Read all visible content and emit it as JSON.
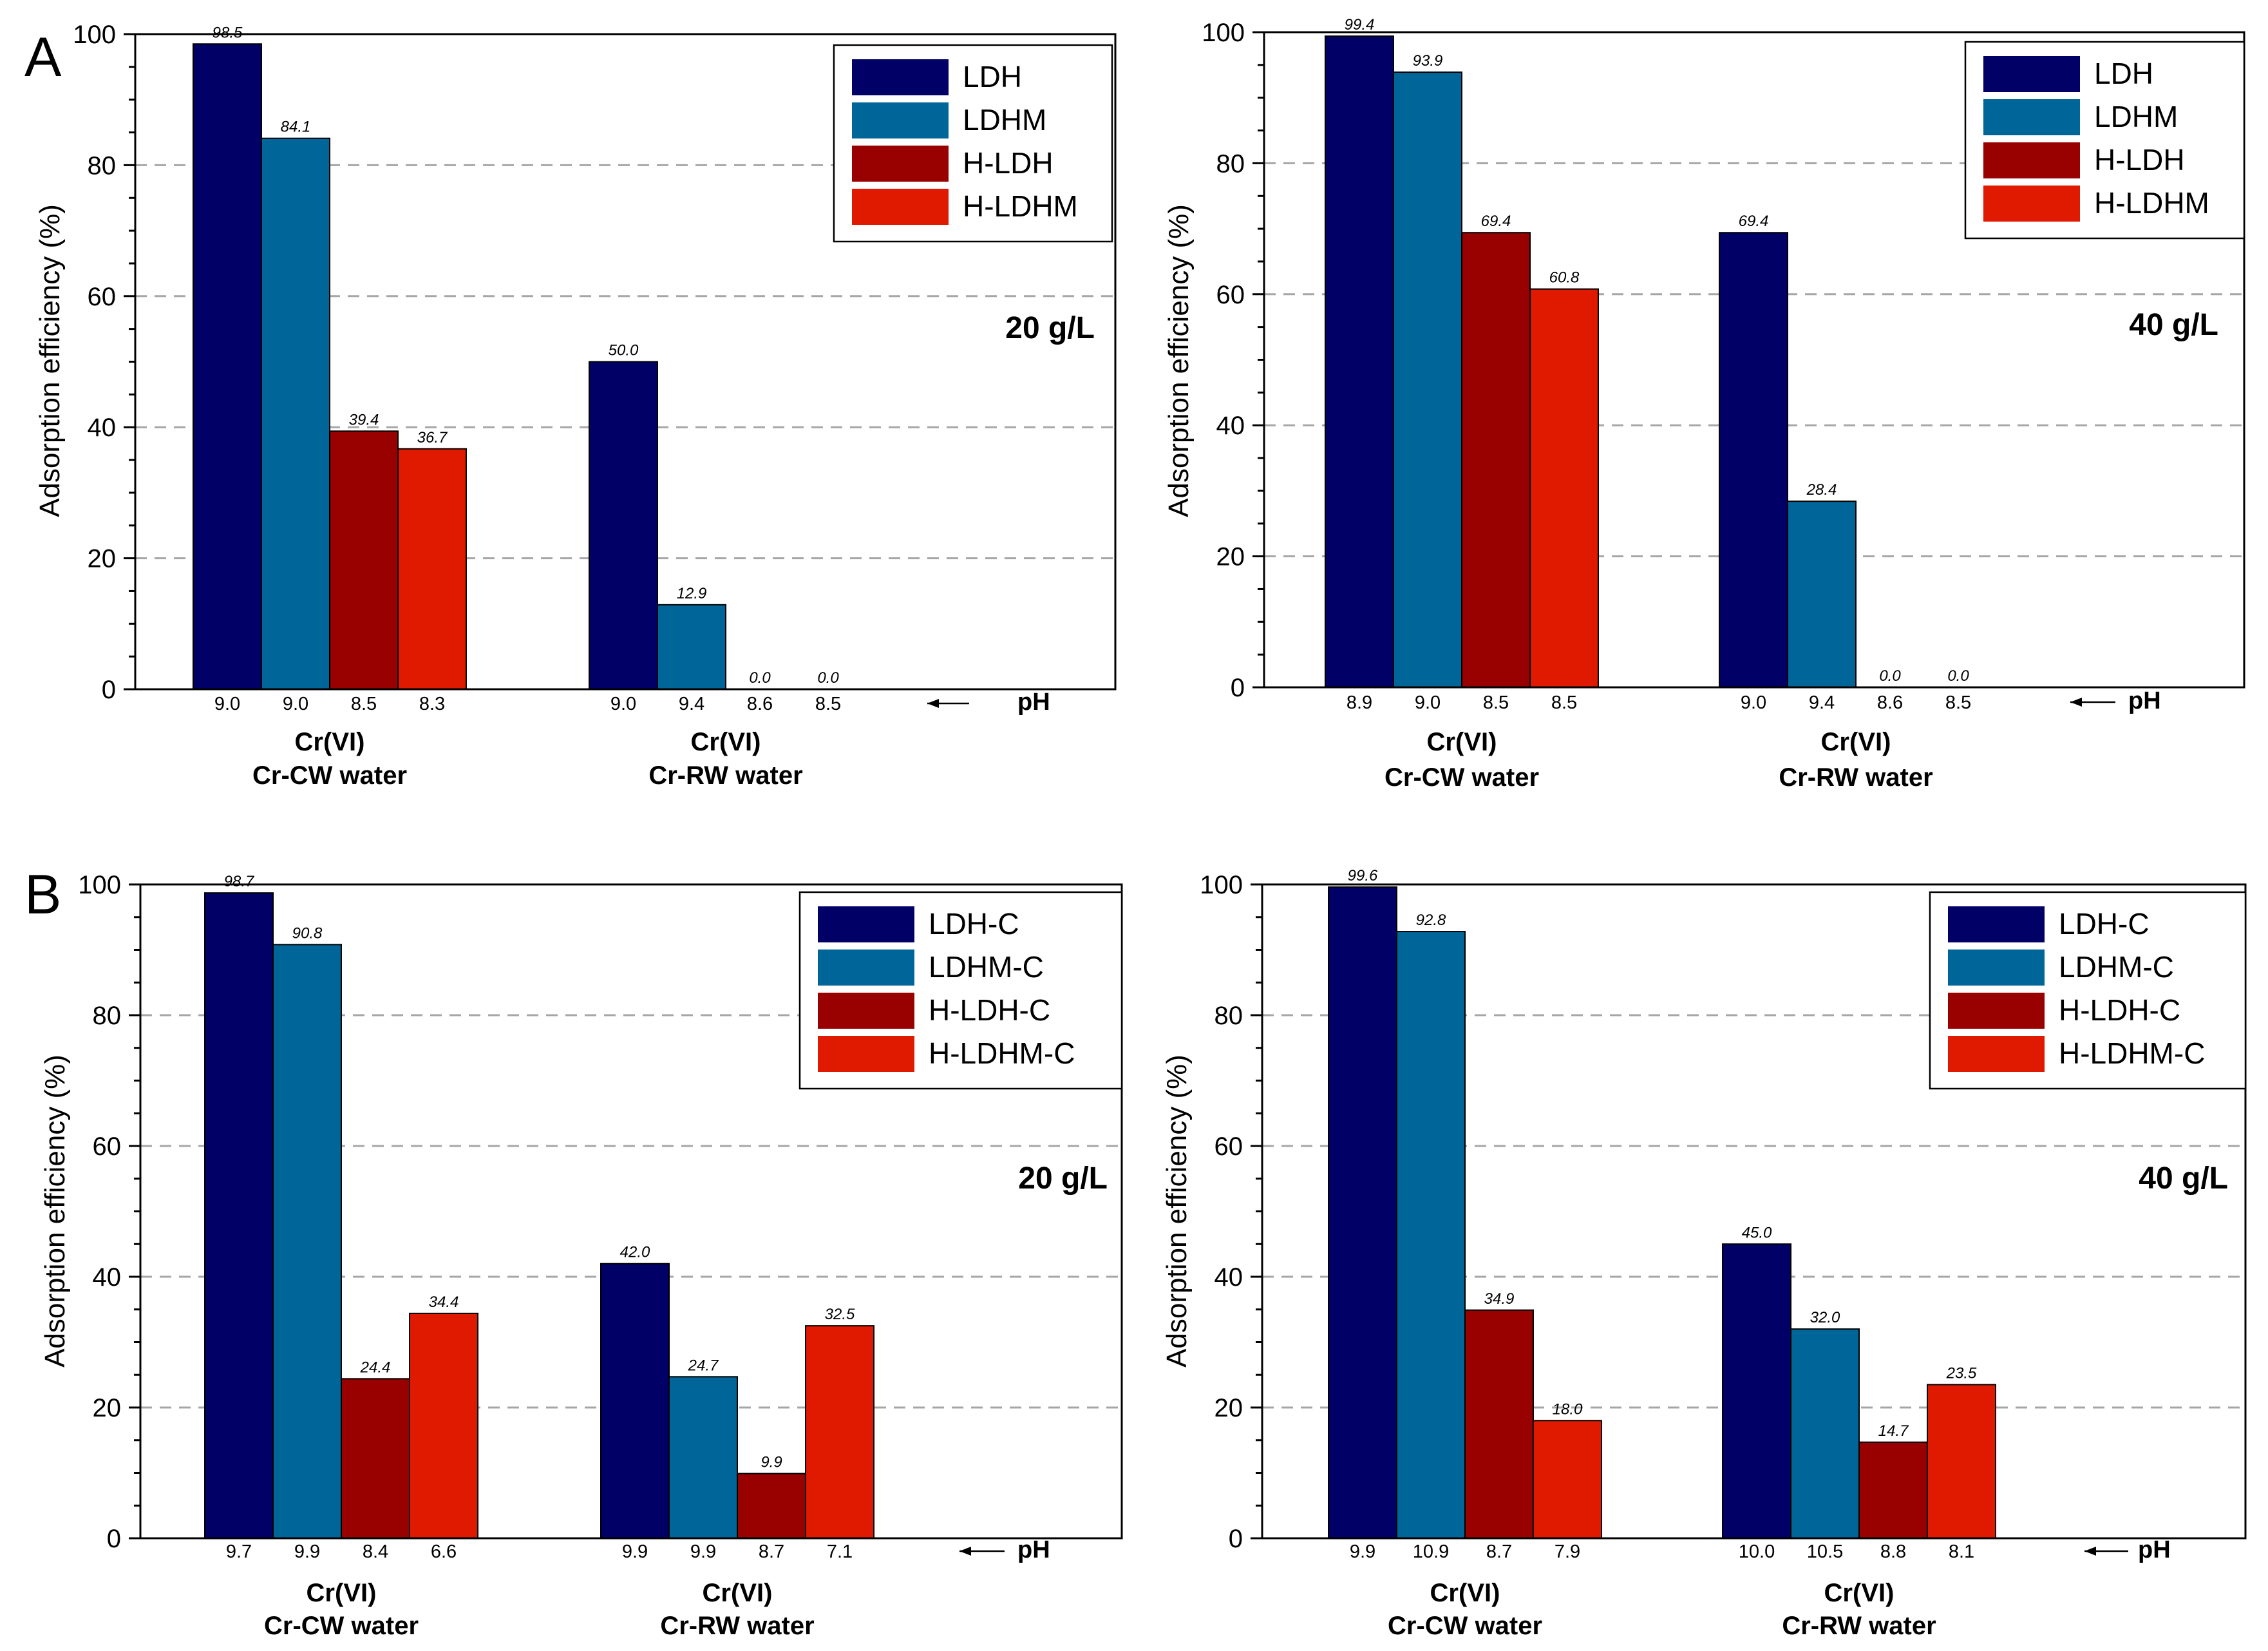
{
  "figure": {
    "panel_labels": [
      "A",
      "B"
    ],
    "ylabel": "Adsorption efficiency (%)",
    "ph_label": "pH",
    "group_line1": "Cr(VI)",
    "colors": [
      "#000066",
      "#006699",
      "#990000",
      "#e01a00"
    ]
  },
  "chart_data": [
    {
      "type": "bar",
      "panel": "A",
      "concentration": "20 g/L",
      "ylim": [
        0,
        100
      ],
      "yticks": [
        0,
        20,
        40,
        60,
        80,
        100
      ],
      "grid": true,
      "legend_position": "top-right",
      "categories": [
        "Cr-CW water",
        "Cr-RW water"
      ],
      "series": [
        {
          "name": "LDH",
          "values": [
            98.5,
            50.0
          ],
          "labels": [
            "98.5",
            "50.0"
          ],
          "ph": [
            "9.0",
            "9.0"
          ]
        },
        {
          "name": "LDHM",
          "values": [
            84.1,
            12.9
          ],
          "labels": [
            "84.1",
            "12.9"
          ],
          "ph": [
            "9.0",
            "9.4"
          ]
        },
        {
          "name": "H-LDH",
          "values": [
            39.4,
            0.0
          ],
          "labels": [
            "39.4",
            "0.0"
          ],
          "ph": [
            "8.5",
            "8.6"
          ]
        },
        {
          "name": "H-LDHM",
          "values": [
            36.7,
            0.0
          ],
          "labels": [
            "36.7",
            "0.0"
          ],
          "ph": [
            "8.3",
            "8.5"
          ]
        }
      ]
    },
    {
      "type": "bar",
      "panel": "A",
      "concentration": "40 g/L",
      "ylim": [
        0,
        100
      ],
      "yticks": [
        0,
        20,
        40,
        60,
        80,
        100
      ],
      "grid": true,
      "legend_position": "top-right",
      "categories": [
        "Cr-CW water",
        "Cr-RW water"
      ],
      "series": [
        {
          "name": "LDH",
          "values": [
            99.4,
            69.4
          ],
          "labels": [
            "99.4",
            "69.4"
          ],
          "ph": [
            "8.9",
            "9.0"
          ]
        },
        {
          "name": "LDHM",
          "values": [
            93.9,
            28.4
          ],
          "labels": [
            "93.9",
            "28.4"
          ],
          "ph": [
            "9.0",
            "9.4"
          ]
        },
        {
          "name": "H-LDH",
          "values": [
            69.4,
            0.0
          ],
          "labels": [
            "69.4",
            "0.0"
          ],
          "ph": [
            "8.5",
            "8.6"
          ]
        },
        {
          "name": "H-LDHM",
          "values": [
            60.8,
            0.0
          ],
          "labels": [
            "60.8",
            "0.0"
          ],
          "ph": [
            "8.5",
            "8.5"
          ]
        }
      ]
    },
    {
      "type": "bar",
      "panel": "B",
      "concentration": "20 g/L",
      "ylim": [
        0,
        100
      ],
      "yticks": [
        0,
        20,
        40,
        60,
        80,
        100
      ],
      "grid": true,
      "legend_position": "top-right",
      "categories": [
        "Cr-CW water",
        "Cr-RW water"
      ],
      "series": [
        {
          "name": "LDH-C",
          "values": [
            98.7,
            42.0
          ],
          "labels": [
            "98.7",
            "42.0"
          ],
          "ph": [
            "9.7",
            "9.9"
          ]
        },
        {
          "name": "LDHM-C",
          "values": [
            90.8,
            24.7
          ],
          "labels": [
            "90.8",
            "24.7"
          ],
          "ph": [
            "9.9",
            "9.9"
          ]
        },
        {
          "name": "H-LDH-C",
          "values": [
            24.4,
            9.9
          ],
          "labels": [
            "24.4",
            "9.9"
          ],
          "ph": [
            "8.4",
            "8.7"
          ]
        },
        {
          "name": "H-LDHM-C",
          "values": [
            34.4,
            32.5
          ],
          "labels": [
            "34.4",
            "32.5"
          ],
          "ph": [
            "6.6",
            "7.1"
          ]
        }
      ]
    },
    {
      "type": "bar",
      "panel": "B",
      "concentration": "40 g/L",
      "ylim": [
        0,
        100
      ],
      "yticks": [
        0,
        20,
        40,
        60,
        80,
        100
      ],
      "grid": true,
      "legend_position": "top-right",
      "categories": [
        "Cr-CW water",
        "Cr-RW water"
      ],
      "series": [
        {
          "name": "LDH-C",
          "values": [
            99.6,
            45.0
          ],
          "labels": [
            "99.6",
            "45.0"
          ],
          "ph": [
            "9.9",
            "10.0"
          ]
        },
        {
          "name": "LDHM-C",
          "values": [
            92.8,
            32.0
          ],
          "labels": [
            "92.8",
            "32.0"
          ],
          "ph": [
            "10.9",
            "10.5"
          ]
        },
        {
          "name": "H-LDH-C",
          "values": [
            34.9,
            14.7
          ],
          "labels": [
            "34.9",
            "14.7"
          ],
          "ph": [
            "8.7",
            "8.8"
          ]
        },
        {
          "name": "H-LDHM-C",
          "values": [
            18.0,
            23.5
          ],
          "labels": [
            "18.0",
            "23.5"
          ],
          "ph": [
            "7.9",
            "8.1"
          ]
        }
      ]
    }
  ]
}
